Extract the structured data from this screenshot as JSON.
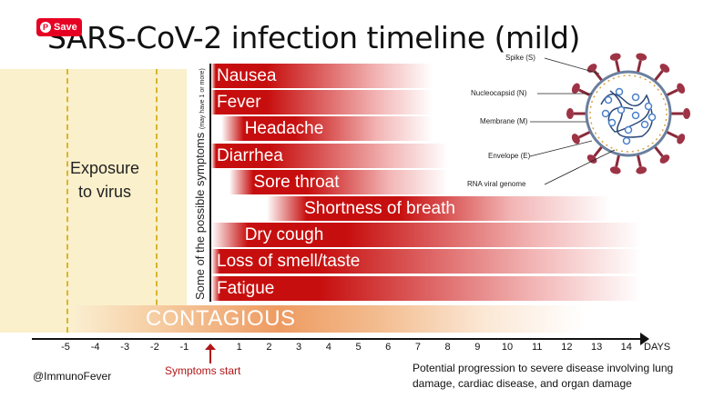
{
  "save_button": {
    "label": "Save"
  },
  "title": "SARS-CoV-2 infection timeline (mild)",
  "exposure": {
    "line1": "Exposure",
    "line2": "to virus"
  },
  "symptoms_axis_label": {
    "main": "Some of the possible symptoms",
    "note": "(may have 1 or more)"
  },
  "symptoms": [
    {
      "name": "Nausea",
      "start_day": 0,
      "end_day": 7.5
    },
    {
      "name": "Fever",
      "start_day": 0,
      "end_day": 7.5
    },
    {
      "name": "Headache",
      "start_day": 1,
      "end_day": 7.5
    },
    {
      "name": "Diarrhea",
      "start_day": 0,
      "end_day": 8
    },
    {
      "name": "Sore throat",
      "start_day": 1.3,
      "end_day": 8
    },
    {
      "name": "Shortness of breath",
      "start_day": 3,
      "end_day": 13.5
    },
    {
      "name": "Dry cough",
      "start_day": 1,
      "end_day": 14.5
    },
    {
      "name": "Loss of smell/taste",
      "start_day": 0,
      "end_day": 14.5
    },
    {
      "name": "Fatigue",
      "start_day": 0,
      "end_day": 14.5
    }
  ],
  "contagious": {
    "label": "CONTAGIOUS",
    "start_day": -5,
    "end_day": 12
  },
  "axis": {
    "ticks": [
      "-5",
      "-4",
      "-3",
      "-2",
      "-1",
      "1",
      "2",
      "3",
      "4",
      "5",
      "6",
      "7",
      "8",
      "9",
      "10",
      "11",
      "12",
      "13",
      "14"
    ],
    "unit": "DAYS"
  },
  "symptoms_start": "Symptoms start",
  "credit": "@ImmunoFever",
  "progression_note": "Potential progression to severe disease involving lung damage, cardiac disease, and organ damage",
  "virus_labels": {
    "spike": "Spike (S)",
    "nucleocapsid": "Nucleocapsid (N)",
    "membrane": "Membrane (M)",
    "envelope": "Envelope (E)",
    "rna": "RNA viral genome"
  },
  "colors": {
    "bar_red": "#c70e0e",
    "exposure_bg": "#fbf0cc",
    "dash": "#d8b52c",
    "contagious": "#ee9b62",
    "pin_red": "#e60023"
  }
}
